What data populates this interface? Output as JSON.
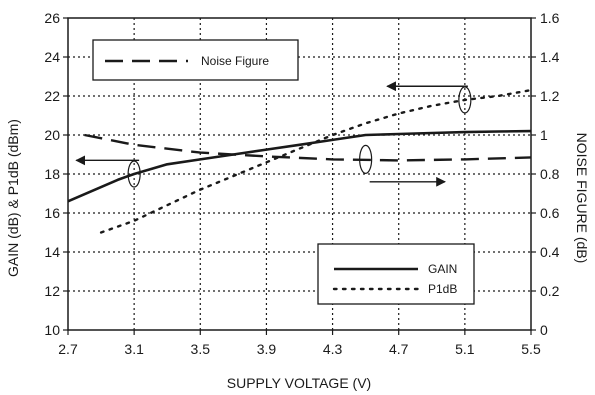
{
  "chart_data": {
    "type": "line",
    "xlabel": "SUPPLY VOLTAGE (V)",
    "ylabel_left": "GAIN (dB) & P1dB (dBm)",
    "ylabel_right": "NOISE FIGURE (dB)",
    "xlim": [
      2.7,
      5.5
    ],
    "ylim_left": [
      10,
      26
    ],
    "ylim_right": [
      0,
      1.6
    ],
    "x_ticks": [
      "2.7",
      "3.1",
      "3.5",
      "3.9",
      "4.3",
      "4.7",
      "5.1",
      "5.5"
    ],
    "y_ticks_left": [
      "10",
      "12",
      "14",
      "16",
      "18",
      "20",
      "22",
      "24",
      "26"
    ],
    "y_ticks_right": [
      "0",
      "0.2",
      "0.4",
      "0.6",
      "0.8",
      "1",
      "1.2",
      "1.4",
      "1.6"
    ],
    "grid": true,
    "series": [
      {
        "name": "GAIN",
        "axis": "left",
        "style": "solid",
        "x": [
          2.7,
          3.0,
          3.1,
          3.3,
          3.5,
          3.7,
          3.9,
          4.1,
          4.3,
          4.5,
          4.7,
          4.9,
          5.1,
          5.3,
          5.5
        ],
        "y": [
          16.6,
          17.7,
          18.0,
          18.5,
          18.75,
          19.0,
          19.25,
          19.5,
          19.75,
          20.0,
          20.05,
          20.1,
          20.15,
          20.18,
          20.2
        ]
      },
      {
        "name": "P1dB",
        "axis": "left",
        "style": "dotted",
        "x": [
          2.9,
          3.1,
          3.3,
          3.5,
          3.7,
          3.9,
          4.1,
          4.3,
          4.5,
          4.7,
          4.9,
          5.1,
          5.3,
          5.5
        ],
        "y": [
          15.0,
          15.6,
          16.4,
          17.2,
          17.9,
          18.6,
          19.3,
          20.0,
          20.6,
          21.1,
          21.5,
          21.8,
          22.0,
          22.3
        ]
      },
      {
        "name": "Noise Figure",
        "axis": "right",
        "style": "dashed",
        "x": [
          2.8,
          3.1,
          3.5,
          3.9,
          4.3,
          4.7,
          5.1,
          5.5
        ],
        "y": [
          1.0,
          0.95,
          0.91,
          0.89,
          0.875,
          0.87,
          0.875,
          0.885
        ]
      }
    ],
    "legends": [
      {
        "entries": [
          {
            "label": "Noise Figure",
            "style": "dashed"
          }
        ],
        "placement": "top-left"
      },
      {
        "entries": [
          {
            "label": "GAIN",
            "style": "solid"
          },
          {
            "label": "P1dB",
            "style": "dotted"
          }
        ],
        "placement": "bottom-right"
      }
    ],
    "colors": {
      "line": "#1a1a1a",
      "grid": "#1a1a1a",
      "background": "#ffffff"
    }
  }
}
